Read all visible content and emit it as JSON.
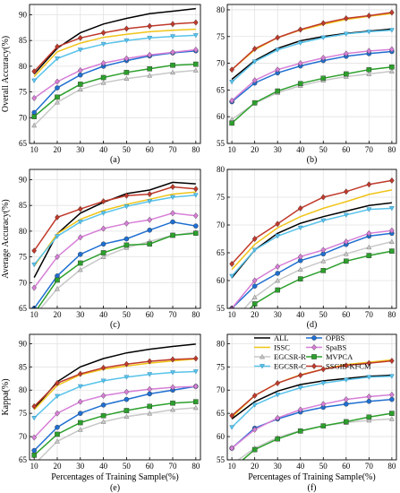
{
  "chart_data": [
    {
      "type": "line",
      "panel_label": "(a)",
      "ylabel": "Overall Accuracy(%)",
      "xlabel": "",
      "x": [
        10,
        20,
        30,
        40,
        50,
        60,
        70,
        80
      ],
      "ylim": [
        65,
        92
      ],
      "yticks": [
        65,
        70,
        75,
        80,
        85,
        90
      ],
      "grid": true,
      "series": [
        {
          "name": "ALL",
          "values": [
            78.5,
            83.5,
            86.5,
            88.2,
            89.3,
            90.2,
            90.7,
            91.2
          ]
        },
        {
          "name": "ISSC",
          "values": [
            78.0,
            82.8,
            84.5,
            85.6,
            86.2,
            86.7,
            87.0,
            87.2
          ]
        },
        {
          "name": "EGCSR-R",
          "values": [
            68.5,
            73.0,
            75.5,
            76.8,
            77.6,
            78.2,
            78.8,
            79.2
          ]
        },
        {
          "name": "EGCSR-C",
          "values": [
            77.2,
            81.5,
            83.2,
            84.3,
            85.0,
            85.5,
            85.8,
            86.0
          ]
        },
        {
          "name": "OPBS",
          "values": [
            71.0,
            75.8,
            78.3,
            80.0,
            81.1,
            82.0,
            82.6,
            83.0
          ]
        },
        {
          "name": "SpaBS",
          "values": [
            73.8,
            77.0,
            79.2,
            80.6,
            81.5,
            82.2,
            82.7,
            83.2
          ]
        },
        {
          "name": "MVPCA",
          "values": [
            70.2,
            74.0,
            76.5,
            77.8,
            78.8,
            79.5,
            80.2,
            80.4
          ]
        },
        {
          "name": "SSGIE-KFCM",
          "values": [
            79.0,
            83.8,
            85.5,
            86.5,
            87.3,
            87.8,
            88.2,
            88.5
          ]
        }
      ]
    },
    {
      "type": "line",
      "panel_label": "(b)",
      "ylabel": "",
      "xlabel": "",
      "x": [
        10,
        20,
        30,
        40,
        50,
        60,
        70,
        80
      ],
      "ylim": [
        55,
        81
      ],
      "yticks": [
        55,
        60,
        65,
        70,
        75,
        80
      ],
      "grid": true,
      "series": [
        {
          "name": "ALL",
          "values": [
            67.0,
            70.5,
            72.8,
            74.2,
            75.0,
            75.6,
            76.0,
            76.4
          ]
        },
        {
          "name": "ISSC",
          "values": [
            68.8,
            72.5,
            74.8,
            76.2,
            77.3,
            78.2,
            78.8,
            79.3
          ]
        },
        {
          "name": "EGCSR-R",
          "values": [
            59.5,
            62.5,
            64.5,
            65.8,
            66.8,
            67.5,
            68.0,
            68.5
          ]
        },
        {
          "name": "EGCSR-C",
          "values": [
            66.5,
            70.3,
            72.5,
            73.8,
            74.8,
            75.5,
            75.9,
            76.2
          ]
        },
        {
          "name": "OPBS",
          "values": [
            62.8,
            66.3,
            68.2,
            69.5,
            70.5,
            71.3,
            71.8,
            72.2
          ]
        },
        {
          "name": "SpaBS",
          "values": [
            63.0,
            66.8,
            68.8,
            70.0,
            71.0,
            71.8,
            72.3,
            72.6
          ]
        },
        {
          "name": "MVPCA",
          "values": [
            58.8,
            62.6,
            64.8,
            66.2,
            67.2,
            68.0,
            68.8,
            69.3
          ]
        },
        {
          "name": "SSGIE-KFCM",
          "values": [
            68.8,
            72.7,
            74.8,
            76.3,
            77.5,
            78.4,
            78.9,
            79.5
          ]
        }
      ]
    },
    {
      "type": "line",
      "panel_label": "(c)",
      "ylabel": "Average Accuracy(%)",
      "xlabel": "",
      "x": [
        10,
        20,
        30,
        40,
        50,
        60,
        70,
        80
      ],
      "ylim": [
        65,
        92
      ],
      "yticks": [
        65,
        70,
        75,
        80,
        85,
        90
      ],
      "grid": true,
      "series": [
        {
          "name": "ALL",
          "values": [
            71.0,
            79.5,
            83.5,
            85.6,
            87.3,
            88.0,
            89.5,
            89.2
          ]
        },
        {
          "name": "ISSC",
          "values": [
            73.2,
            79.5,
            82.3,
            84.0,
            85.2,
            86.2,
            87.2,
            87.6
          ]
        },
        {
          "name": "EGCSR-R",
          "values": [
            63.5,
            68.8,
            72.5,
            75.0,
            76.8,
            78.0,
            79.2,
            79.8
          ]
        },
        {
          "name": "EGCSR-C",
          "values": [
            73.5,
            79.0,
            81.8,
            83.5,
            84.8,
            85.8,
            86.6,
            87.0
          ]
        },
        {
          "name": "OPBS",
          "values": [
            65.0,
            71.3,
            75.5,
            77.5,
            78.5,
            80.2,
            81.8,
            81.0
          ]
        },
        {
          "name": "SpaBS",
          "values": [
            69.0,
            75.0,
            78.8,
            80.5,
            81.5,
            82.2,
            83.5,
            83.0
          ]
        },
        {
          "name": "MVPCA",
          "values": [
            64.0,
            70.5,
            73.8,
            75.8,
            77.3,
            77.5,
            79.2,
            79.6
          ]
        },
        {
          "name": "SSGIE-KFCM",
          "values": [
            76.2,
            82.7,
            84.3,
            85.8,
            86.9,
            87.2,
            88.6,
            88.2
          ]
        }
      ]
    },
    {
      "type": "line",
      "panel_label": "(d)",
      "ylabel": "",
      "xlabel": "",
      "x": [
        10,
        20,
        30,
        40,
        50,
        60,
        70,
        80
      ],
      "ylim": [
        55,
        80
      ],
      "yticks": [
        55,
        60,
        65,
        70,
        75,
        80
      ],
      "grid": true,
      "series": [
        {
          "name": "ALL",
          "values": [
            60.5,
            65.5,
            68.5,
            70.3,
            71.5,
            72.5,
            73.5,
            74.0
          ]
        },
        {
          "name": "ISSC",
          "values": [
            62.0,
            66.5,
            69.5,
            71.5,
            73.0,
            74.2,
            75.5,
            76.3
          ]
        },
        {
          "name": "EGCSR-R",
          "values": [
            52.5,
            57.0,
            60.0,
            62.0,
            63.5,
            64.8,
            66.0,
            67.0
          ]
        },
        {
          "name": "EGCSR-C",
          "values": [
            60.8,
            65.5,
            68.0,
            69.5,
            70.8,
            71.8,
            72.8,
            73.0
          ]
        },
        {
          "name": "OPBS",
          "values": [
            55.0,
            59.0,
            61.3,
            63.6,
            64.8,
            66.5,
            68.0,
            68.5
          ]
        },
        {
          "name": "SpaBS",
          "values": [
            55.0,
            60.0,
            62.5,
            64.3,
            65.5,
            67.0,
            68.5,
            69.0
          ]
        },
        {
          "name": "MVPCA",
          "values": [
            51.5,
            55.8,
            58.3,
            60.3,
            61.8,
            63.5,
            64.5,
            65.3
          ]
        },
        {
          "name": "SSGIE-KFCM",
          "values": [
            63.0,
            67.5,
            70.2,
            73.0,
            75.0,
            76.0,
            77.3,
            78.0
          ]
        }
      ]
    },
    {
      "type": "line",
      "panel_label": "(e)",
      "ylabel": "Kappa(%)",
      "xlabel": "Percentages of Training Sample(%)",
      "x": [
        10,
        20,
        30,
        40,
        50,
        60,
        70,
        80
      ],
      "ylim": [
        65,
        92
      ],
      "yticks": [
        65,
        70,
        75,
        80,
        85,
        90
      ],
      "grid": true,
      "series": [
        {
          "name": "ALL",
          "values": [
            76.0,
            81.8,
            85.0,
            86.8,
            88.0,
            88.8,
            89.4,
            89.9
          ]
        },
        {
          "name": "ISSC",
          "values": [
            75.8,
            81.0,
            83.3,
            84.5,
            85.2,
            85.8,
            86.3,
            86.7
          ]
        },
        {
          "name": "EGCSR-R",
          "values": [
            64.0,
            69.0,
            71.5,
            73.2,
            74.3,
            75.0,
            75.8,
            76.2
          ]
        },
        {
          "name": "EGCSR-C",
          "values": [
            74.0,
            78.7,
            80.8,
            82.0,
            82.8,
            83.4,
            83.8,
            84.0
          ]
        },
        {
          "name": "OPBS",
          "values": [
            67.0,
            72.0,
            75.0,
            76.8,
            78.0,
            79.2,
            80.0,
            80.8
          ]
        },
        {
          "name": "SpaBS",
          "values": [
            69.8,
            75.0,
            77.5,
            78.8,
            79.6,
            80.2,
            80.6,
            80.8
          ]
        },
        {
          "name": "MVPCA",
          "values": [
            66.0,
            70.5,
            73.0,
            74.5,
            75.6,
            76.5,
            77.2,
            77.5
          ]
        },
        {
          "name": "SSGIE-KFCM",
          "values": [
            76.5,
            81.5,
            83.5,
            84.8,
            85.6,
            86.2,
            86.6,
            86.8
          ]
        }
      ]
    },
    {
      "type": "line",
      "panel_label": "(f)",
      "ylabel": "",
      "xlabel": "Percentages of Training Sample(%)",
      "x": [
        10,
        20,
        30,
        40,
        50,
        60,
        70,
        80
      ],
      "ylim": [
        55,
        82
      ],
      "yticks": [
        55,
        60,
        65,
        70,
        75,
        80
      ],
      "grid": true,
      "series": [
        {
          "name": "ALL",
          "values": [
            63.8,
            67.5,
            69.8,
            71.2,
            72.0,
            72.5,
            73.0,
            73.2
          ]
        },
        {
          "name": "ISSC",
          "values": [
            64.2,
            68.8,
            71.5,
            73.3,
            74.5,
            75.5,
            76.0,
            76.5
          ]
        },
        {
          "name": "EGCSR-R",
          "values": [
            54.0,
            57.5,
            59.8,
            61.3,
            62.3,
            63.0,
            63.5,
            63.8
          ]
        },
        {
          "name": "EGCSR-C",
          "values": [
            62.0,
            66.8,
            69.0,
            70.5,
            71.5,
            72.2,
            72.8,
            73.0
          ]
        },
        {
          "name": "OPBS",
          "values": [
            57.5,
            61.8,
            63.8,
            65.3,
            66.3,
            67.0,
            67.6,
            68.0
          ]
        },
        {
          "name": "SpaBS",
          "values": [
            57.5,
            61.5,
            64.0,
            65.8,
            67.0,
            68.0,
            68.6,
            69.0
          ]
        },
        {
          "name": "MVPCA",
          "values": [
            53.0,
            57.2,
            59.5,
            61.2,
            62.3,
            63.2,
            64.2,
            65.0
          ]
        },
        {
          "name": "SSGIE-KFCM",
          "values": [
            64.5,
            68.8,
            71.5,
            73.2,
            74.5,
            75.3,
            75.8,
            76.3
          ]
        }
      ]
    }
  ],
  "legend": [
    {
      "name": "ALL",
      "color": "#000000",
      "marker": "none"
    },
    {
      "name": "OPBS",
      "color": "#1f6fd1",
      "marker": "circle"
    },
    {
      "name": "ISSC",
      "color": "#f0c419",
      "marker": "none"
    },
    {
      "name": "SpaBS",
      "color": "#d77fd7",
      "marker": "diamond"
    },
    {
      "name": "EGCSR-R",
      "color": "#c8c8c8",
      "marker": "triangle"
    },
    {
      "name": "MVPCA",
      "color": "#2ca02c",
      "marker": "square"
    },
    {
      "name": "EGCSR-C",
      "color": "#58c3ea",
      "marker": "triangle-down"
    },
    {
      "name": "SSGIE-KFCM",
      "color": "#c0392b",
      "marker": "diamond"
    }
  ],
  "styles": {
    "ALL": {
      "color": "#000000",
      "marker": "none"
    },
    "ISSC": {
      "color": "#f0c419",
      "marker": "none"
    },
    "EGCSR-R": {
      "color": "#c8c8c8",
      "marker": "triangle"
    },
    "EGCSR-C": {
      "color": "#58c3ea",
      "marker": "triangle-down"
    },
    "OPBS": {
      "color": "#1f6fd1",
      "marker": "circle"
    },
    "SpaBS": {
      "color": "#d77fd7",
      "marker": "diamond"
    },
    "MVPCA": {
      "color": "#2ca02c",
      "marker": "square"
    },
    "SSGIE-KFCM": {
      "color": "#c0392b",
      "marker": "diamond"
    }
  }
}
